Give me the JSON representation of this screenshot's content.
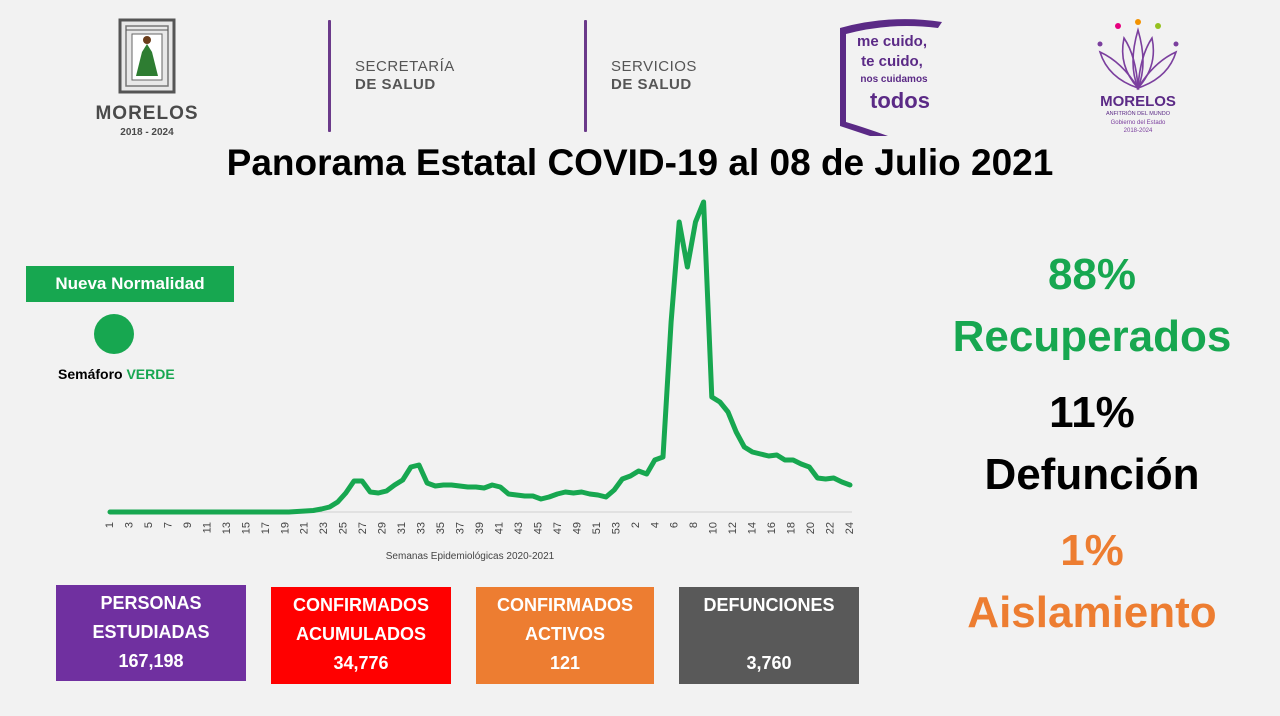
{
  "header": {
    "logo_left": {
      "name": "MORELOS",
      "years": "2018 - 2024"
    },
    "dept1": {
      "line1": "SECRETARÍA",
      "line2": "DE SALUD"
    },
    "dept2": {
      "line1": "SERVICIOS",
      "line2": "DE SALUD"
    },
    "slogan": {
      "line1": "me cuido,",
      "line2": "te cuido,",
      "line3": "nos cuidamos",
      "line4": "todos"
    },
    "logo_right": {
      "name": "MORELOS",
      "tag": "ANFITRIÓN DEL MUNDO",
      "sub": "Gobierno del Estado",
      "years": "2018-2024"
    }
  },
  "title": "Panorama Estatal COVID-19 al 08 de Julio 2021",
  "semaforo": {
    "badge": "Nueva Normalidad",
    "label": "Semáforo",
    "state": "VERDE",
    "color": "#17a750"
  },
  "chart_data": {
    "type": "line",
    "xlabel": "Semanas Epidemiológicas 2020-2021",
    "ylabel": "",
    "tick_labels": [
      "1",
      "3",
      "5",
      "7",
      "9",
      "11",
      "13",
      "15",
      "17",
      "19",
      "21",
      "23",
      "25",
      "27",
      "29",
      "31",
      "33",
      "35",
      "37",
      "39",
      "41",
      "43",
      "45",
      "47",
      "49",
      "51",
      "53",
      "2",
      "4",
      "6",
      "8",
      "10",
      "12",
      "14",
      "16",
      "18",
      "20",
      "22",
      "24"
    ],
    "series": [
      {
        "color": "#17a750",
        "values": [
          0,
          0,
          0,
          0,
          0,
          0,
          0,
          0,
          0,
          0,
          0,
          0,
          0,
          0,
          0,
          0,
          0,
          0,
          0,
          0,
          0,
          0,
          0,
          0.5,
          1,
          1.5,
          3,
          5,
          10,
          19,
          31,
          31,
          20,
          19,
          21,
          27,
          32,
          45,
          47,
          29,
          26,
          27,
          27,
          26,
          25,
          25,
          24,
          27,
          25,
          18,
          17,
          16,
          16,
          13,
          15,
          18,
          20,
          19,
          20,
          18,
          17,
          15,
          22,
          33,
          36,
          41,
          38,
          52,
          55,
          190,
          290,
          245,
          290,
          310,
          115,
          110,
          100,
          80,
          65,
          60,
          58,
          56,
          57,
          52,
          52,
          48,
          45,
          34,
          33,
          34,
          30,
          27
        ]
      }
    ]
  },
  "stats_boxes": [
    {
      "label1": "PERSONAS",
      "label2": "ESTUDIADAS",
      "value": "167,198",
      "color": "#7030a0"
    },
    {
      "label1": "CONFIRMADOS",
      "label2": "ACUMULADOS",
      "value": "34,776",
      "color": "#ff0000"
    },
    {
      "label1": "CONFIRMADOS",
      "label2": "ACTIVOS",
      "value": "121",
      "color": "#ed7d31"
    },
    {
      "label1": "DEFUNCIONES",
      "value": "3,760",
      "color": "#595959"
    }
  ],
  "right_stats": {
    "recovered": {
      "pct": "88%",
      "label": "Recuperados",
      "color": "#17a750"
    },
    "deaths": {
      "pct": "11%",
      "label": "Defunción",
      "color": "#000000"
    },
    "isolation": {
      "pct": "1%",
      "label": "Aislamiento",
      "color": "#ed7d31"
    }
  }
}
